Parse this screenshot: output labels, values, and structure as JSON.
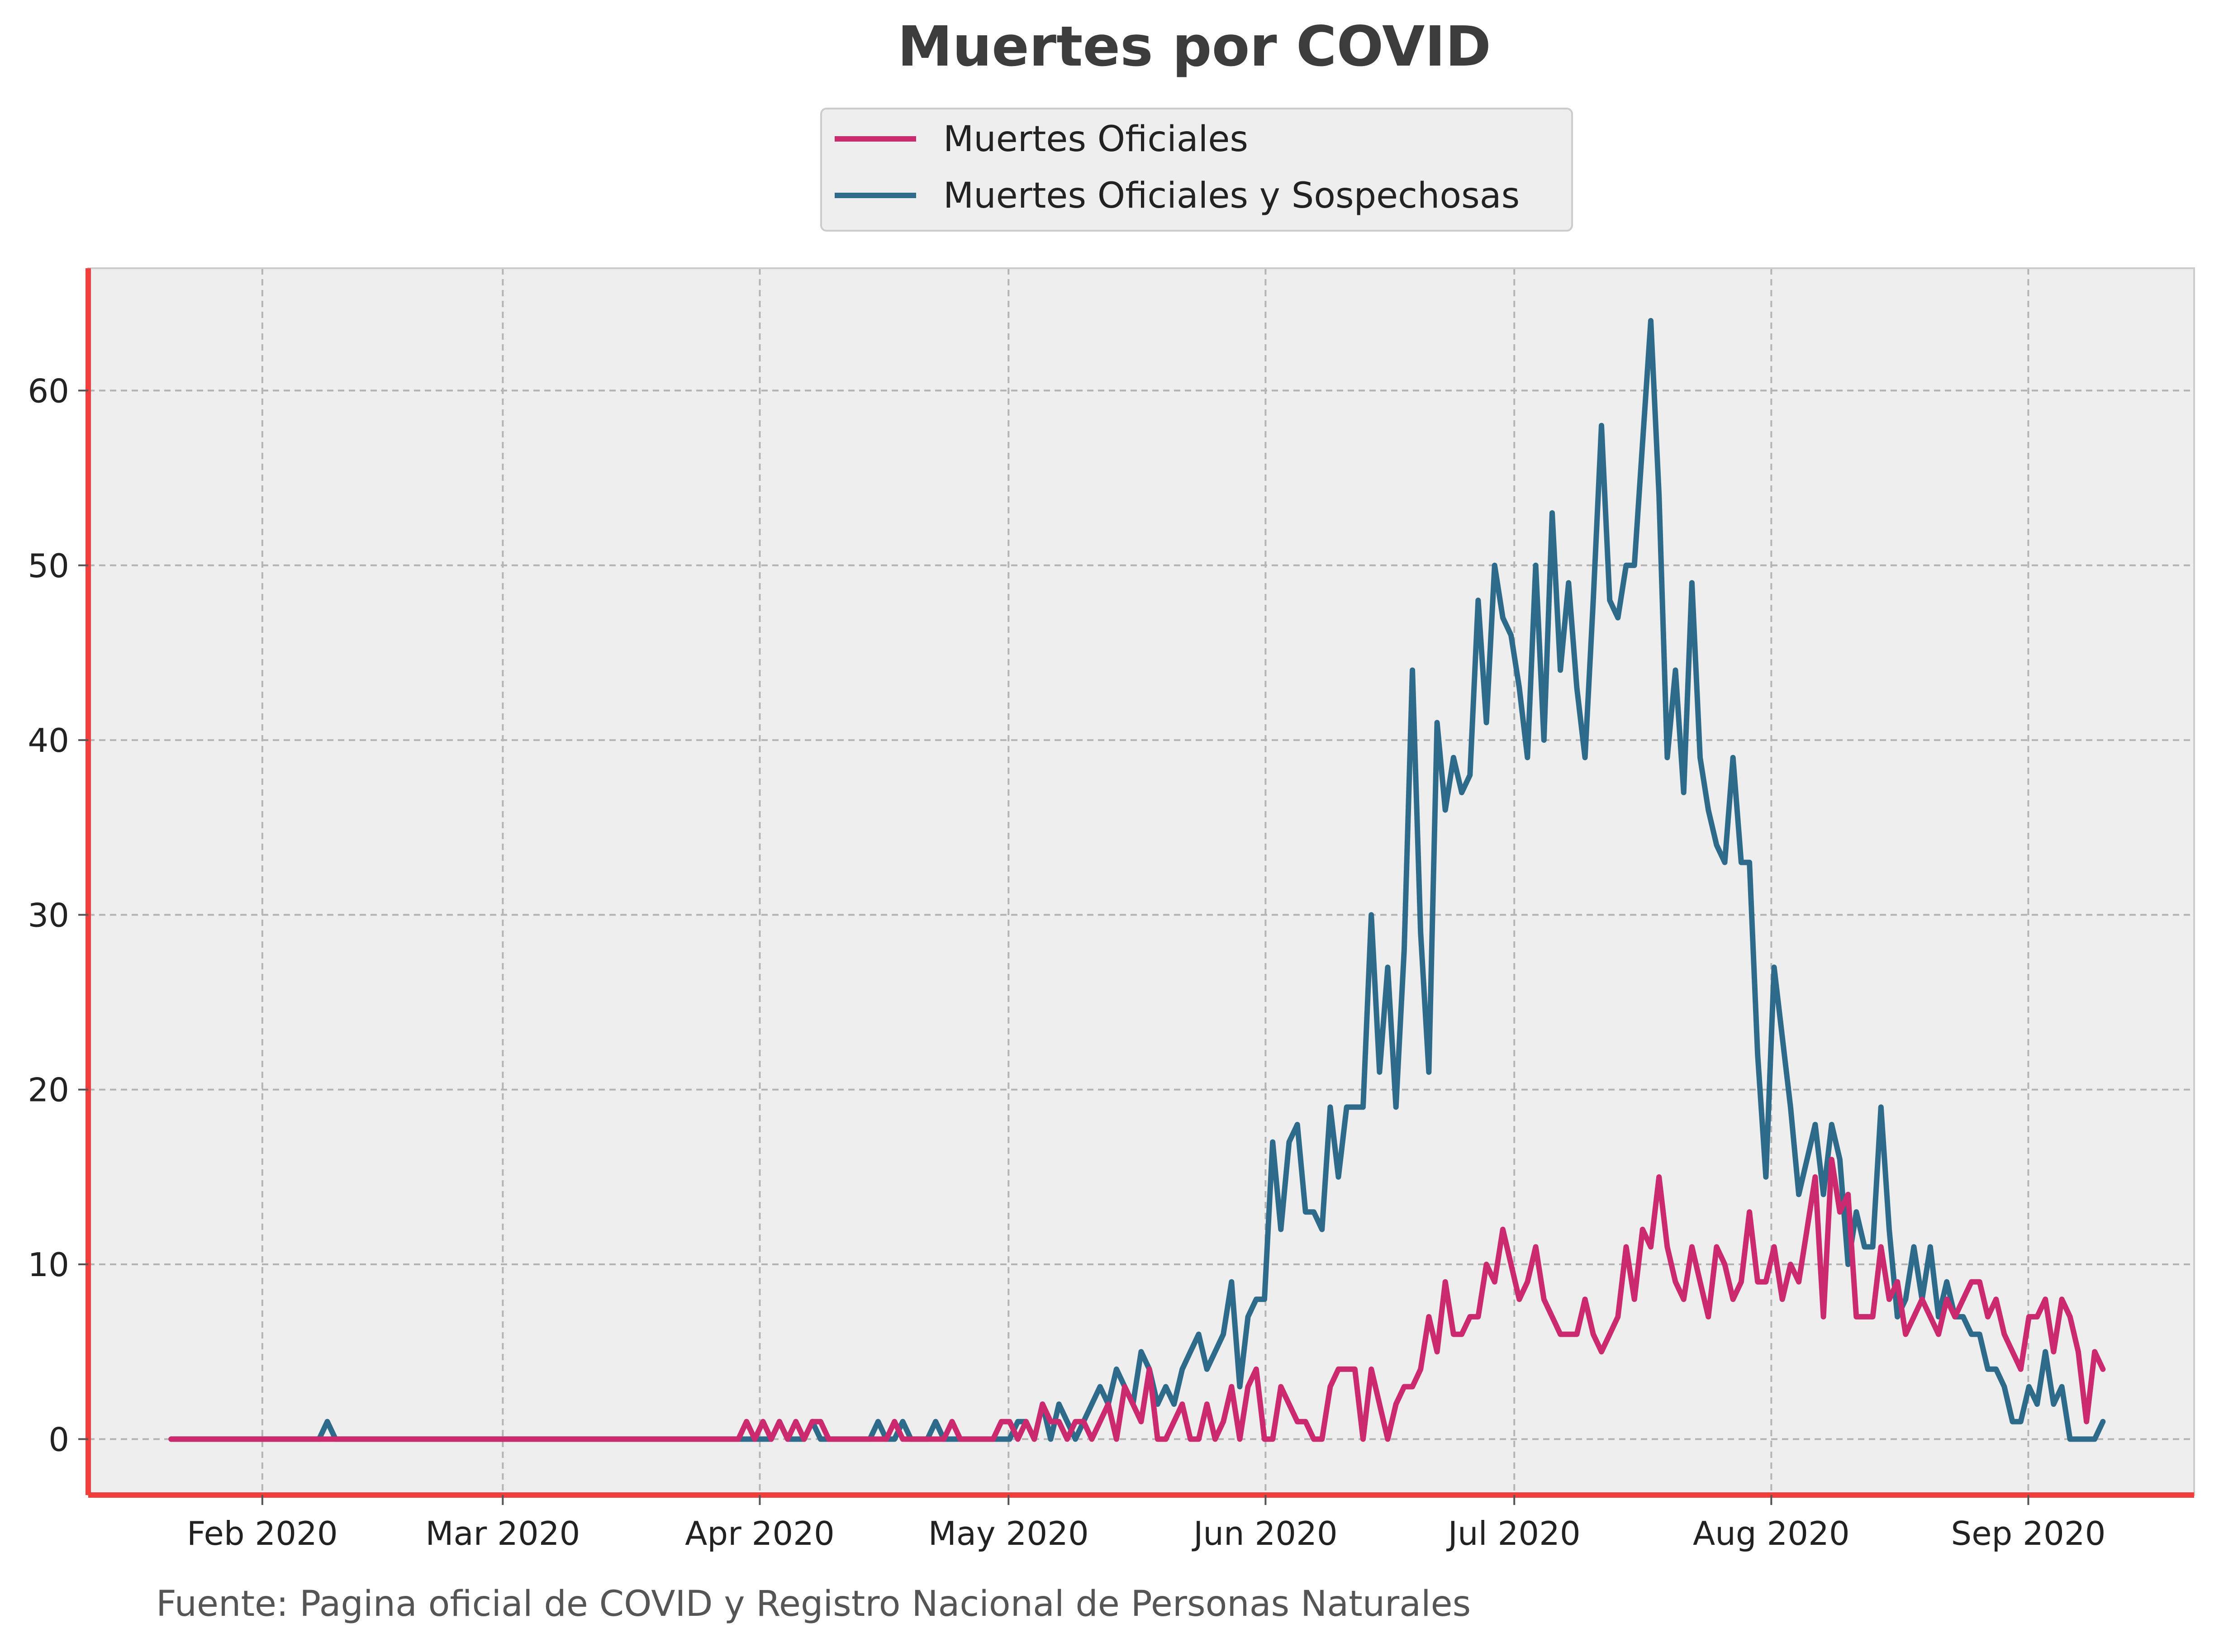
{
  "colors": {
    "background": "#ffffff",
    "plot_background": "#eeeeee",
    "accent_spine": "#f23d3d",
    "official": "#cc2a6e",
    "suspected": "#2e6b8a"
  },
  "source_note": "Fuente: Pagina oficial de COVID y Registro Nacional de Personas Naturales",
  "chart_data": {
    "type": "line",
    "title": "Muertes por COVID",
    "xlabel": "",
    "ylabel": "",
    "grid": true,
    "legend_position": "top-center",
    "x_start": "2020-01-21",
    "x_end": "2020-09-10",
    "xlim": [
      "2020-01-11",
      "2020-09-21"
    ],
    "ylim": [
      -3.2,
      67
    ],
    "x_ticks": [
      {
        "date": "2020-02-01",
        "label": "Feb 2020"
      },
      {
        "date": "2020-03-01",
        "label": "Mar 2020"
      },
      {
        "date": "2020-04-01",
        "label": "Apr 2020"
      },
      {
        "date": "2020-05-01",
        "label": "May 2020"
      },
      {
        "date": "2020-06-01",
        "label": "Jun 2020"
      },
      {
        "date": "2020-07-01",
        "label": "Jul 2020"
      },
      {
        "date": "2020-08-01",
        "label": "Aug 2020"
      },
      {
        "date": "2020-09-01",
        "label": "Sep 2020"
      }
    ],
    "y_ticks": [
      {
        "value": 0,
        "label": "0"
      },
      {
        "value": 10,
        "label": "10"
      },
      {
        "value": 20,
        "label": "20"
      },
      {
        "value": 30,
        "label": "30"
      },
      {
        "value": 40,
        "label": "40"
      },
      {
        "value": 50,
        "label": "50"
      },
      {
        "value": 60,
        "label": "60"
      }
    ],
    "series": [
      {
        "name": "Muertes Oficiales",
        "color": "#cc2a6e",
        "values": [
          0,
          0,
          0,
          0,
          0,
          0,
          0,
          0,
          0,
          0,
          0,
          0,
          0,
          0,
          0,
          0,
          0,
          0,
          0,
          0,
          0,
          0,
          0,
          0,
          0,
          0,
          0,
          0,
          0,
          0,
          0,
          0,
          0,
          0,
          0,
          0,
          0,
          0,
          0,
          0,
          0,
          0,
          0,
          0,
          0,
          0,
          0,
          0,
          0,
          0,
          0,
          0,
          0,
          0,
          0,
          0,
          0,
          0,
          0,
          0,
          0,
          0,
          0,
          0,
          0,
          0,
          0,
          0,
          0,
          0,
          1,
          0,
          1,
          0,
          1,
          0,
          1,
          0,
          1,
          1,
          0,
          0,
          0,
          0,
          0,
          0,
          0,
          0,
          1,
          0,
          0,
          0,
          0,
          0,
          0,
          1,
          0,
          0,
          0,
          0,
          0,
          1,
          1,
          0,
          1,
          0,
          2,
          1,
          1,
          0,
          1,
          1,
          0,
          1,
          2,
          0,
          3,
          2,
          1,
          4,
          0,
          0,
          1,
          2,
          0,
          0,
          2,
          0,
          1,
          3,
          0,
          3,
          4,
          0,
          0,
          3,
          2,
          1,
          1,
          0,
          0,
          3,
          4,
          4,
          4,
          0,
          4,
          2,
          0,
          2,
          3,
          3,
          4,
          7,
          5,
          9,
          6,
          6,
          7,
          7,
          10,
          9,
          12,
          10,
          8,
          9,
          11,
          8,
          7,
          6,
          6,
          6,
          8,
          6,
          5,
          6,
          7,
          11,
          8,
          12,
          11,
          15,
          11,
          9,
          8,
          11,
          9,
          7,
          11,
          10,
          8,
          9,
          13,
          9,
          9,
          11,
          8,
          10,
          9,
          12,
          15,
          7,
          16,
          13,
          14,
          7,
          7,
          7,
          11,
          8,
          9,
          6,
          7,
          8,
          7,
          6,
          8,
          7,
          8,
          9,
          9,
          7,
          8,
          6,
          5,
          4,
          7,
          7,
          8,
          5,
          8,
          7,
          5,
          1,
          5,
          4
        ]
      },
      {
        "name": "Muertes Oficiales y Sospechosas",
        "color": "#2e6b8a",
        "values": [
          0,
          0,
          0,
          0,
          0,
          0,
          0,
          0,
          0,
          0,
          0,
          0,
          0,
          0,
          0,
          0,
          0,
          0,
          0,
          1,
          0,
          0,
          0,
          0,
          0,
          0,
          0,
          0,
          0,
          0,
          0,
          0,
          0,
          0,
          0,
          0,
          0,
          0,
          0,
          0,
          0,
          0,
          0,
          0,
          0,
          0,
          0,
          0,
          0,
          0,
          0,
          0,
          0,
          0,
          0,
          0,
          0,
          0,
          0,
          0,
          0,
          0,
          0,
          0,
          0,
          0,
          0,
          0,
          0,
          0,
          0,
          0,
          0,
          0,
          1,
          0,
          0,
          0,
          1,
          0,
          0,
          0,
          0,
          0,
          0,
          0,
          1,
          0,
          0,
          1,
          0,
          0,
          0,
          1,
          0,
          0,
          0,
          0,
          0,
          0,
          0,
          0,
          0,
          1,
          1,
          0,
          2,
          0,
          2,
          1,
          0,
          1,
          2,
          3,
          2,
          4,
          3,
          2,
          5,
          4,
          2,
          3,
          2,
          4,
          5,
          6,
          4,
          5,
          6,
          9,
          3,
          7,
          8,
          8,
          17,
          12,
          17,
          18,
          13,
          13,
          12,
          19,
          15,
          19,
          19,
          19,
          30,
          21,
          27,
          19,
          28,
          44,
          29,
          21,
          41,
          36,
          39,
          37,
          38,
          48,
          41,
          50,
          47,
          46,
          43,
          39,
          50,
          40,
          53,
          44,
          49,
          43,
          39,
          48,
          58,
          48,
          47,
          50,
          50,
          57,
          64,
          54,
          39,
          44,
          37,
          49,
          39,
          36,
          34,
          33,
          39,
          33,
          33,
          22,
          15,
          27,
          23,
          19,
          14,
          16,
          18,
          14,
          18,
          16,
          10,
          13,
          11,
          11,
          19,
          12,
          7,
          8,
          11,
          8,
          11,
          7,
          9,
          7,
          7,
          6,
          6,
          4,
          4,
          3,
          1,
          1,
          3,
          2,
          5,
          2,
          3,
          0,
          0,
          0,
          0,
          1
        ]
      }
    ]
  }
}
